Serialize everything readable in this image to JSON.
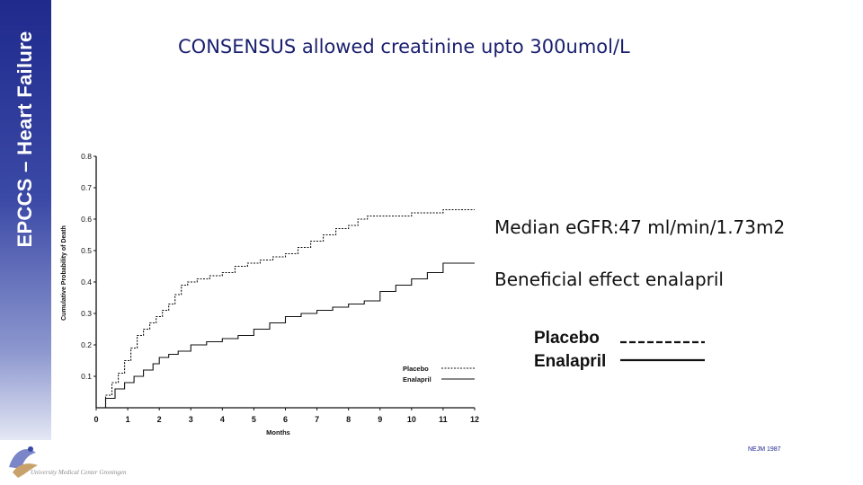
{
  "sidebar": {
    "label": "EPCCS – Heart Failure"
  },
  "slide": {
    "title": "CONSENSUS allowed creatinine upto 300umol/L"
  },
  "notes": {
    "egfr": "Median eGFR:47 ml/min/1.73m2",
    "effect": "Beneficial  effect enalapril"
  },
  "legend_large": {
    "placebo": "Placebo",
    "enalapril": "Enalapril"
  },
  "citation": "NEJM 1987",
  "footer": {
    "institution": "University Medical Center Groningen"
  },
  "colors": {
    "sidebar_top": "#1f2a8c",
    "title": "#1a1f6e",
    "citation": "#1a1f8c"
  },
  "chart_data": {
    "type": "line",
    "xlabel": "Months",
    "ylabel": "Cumulative Probability of Death",
    "xlim": [
      0,
      12
    ],
    "ylim": [
      0,
      0.8
    ],
    "x_ticks": [
      0,
      1,
      2,
      3,
      4,
      5,
      6,
      7,
      8,
      9,
      10,
      11,
      12
    ],
    "y_ticks": [
      0.1,
      0.2,
      0.3,
      0.4,
      0.5,
      0.6,
      0.7,
      0.8
    ],
    "y_tick_labels": [
      "0.1",
      "0.2",
      "0.3",
      "0.4",
      "0.5",
      "0.6",
      "0.7",
      "0.8"
    ],
    "legend": "bottom-right",
    "series": [
      {
        "name": "Placebo",
        "style": "dashed",
        "x": [
          0,
          0.3,
          0.5,
          0.7,
          0.9,
          1.1,
          1.3,
          1.5,
          1.7,
          1.9,
          2.1,
          2.3,
          2.5,
          2.7,
          2.9,
          3.2,
          3.6,
          4.0,
          4.4,
          4.8,
          5.2,
          5.6,
          6.0,
          6.4,
          6.8,
          7.2,
          7.6,
          8.0,
          8.3,
          8.6,
          9.0,
          9.5,
          10.0,
          10.5,
          11.0,
          11.5,
          12.0
        ],
        "y": [
          0,
          0.04,
          0.08,
          0.11,
          0.15,
          0.19,
          0.23,
          0.25,
          0.27,
          0.29,
          0.31,
          0.33,
          0.36,
          0.39,
          0.4,
          0.41,
          0.42,
          0.43,
          0.45,
          0.46,
          0.47,
          0.48,
          0.49,
          0.51,
          0.53,
          0.55,
          0.57,
          0.58,
          0.6,
          0.61,
          0.61,
          0.61,
          0.62,
          0.62,
          0.63,
          0.63,
          0.63
        ]
      },
      {
        "name": "Enalapril",
        "style": "solid",
        "x": [
          0,
          0.3,
          0.6,
          0.9,
          1.2,
          1.5,
          1.8,
          2.0,
          2.3,
          2.6,
          3.0,
          3.5,
          4.0,
          4.5,
          5.0,
          5.5,
          6.0,
          6.5,
          7.0,
          7.5,
          8.0,
          8.5,
          9.0,
          9.5,
          10.0,
          10.5,
          11.0,
          11.5,
          12.0
        ],
        "y": [
          0,
          0.03,
          0.06,
          0.08,
          0.1,
          0.12,
          0.14,
          0.16,
          0.17,
          0.18,
          0.2,
          0.21,
          0.22,
          0.23,
          0.25,
          0.27,
          0.29,
          0.3,
          0.31,
          0.32,
          0.33,
          0.34,
          0.37,
          0.39,
          0.41,
          0.43,
          0.46,
          0.46,
          0.46
        ]
      }
    ]
  }
}
